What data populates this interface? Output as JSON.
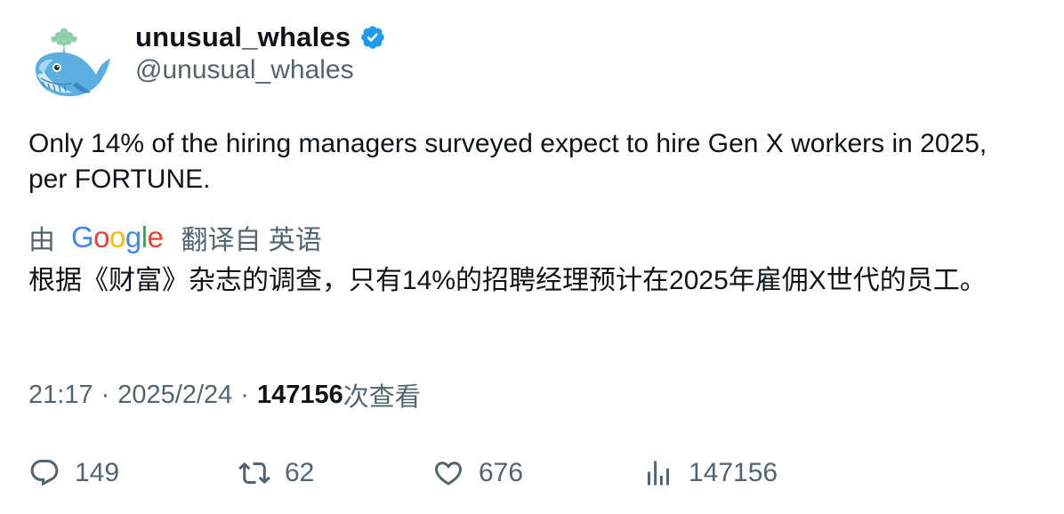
{
  "author": {
    "display_name": "unusual_whales",
    "handle": "@unusual_whales",
    "verified": true,
    "avatar_icon": "whale-icon",
    "verified_color": "#1d9bf0"
  },
  "tweet": {
    "text": "Only 14% of the hiring managers surveyed expect to hire Gen X workers in 2025, per FORTUNE.",
    "translated_by_prefix": "由",
    "translated_by_service": "Google",
    "translated_from": "翻译自 英语",
    "translation": "根据《财富》杂志的调查，只有14%的招聘经理预计在2025年雇佣X世代的员工。"
  },
  "meta": {
    "time": "21:17",
    "separator": "·",
    "date": "2025/2/24",
    "views_count": "147156",
    "views_label": "次查看"
  },
  "actions": {
    "replies": "149",
    "retweets": "62",
    "likes": "676",
    "views": "147156"
  },
  "colors": {
    "text_primary": "#0f1419",
    "text_secondary": "#536471",
    "google_blue": "#4285f4",
    "google_red": "#ea4335",
    "google_yellow": "#fbbc05",
    "google_green": "#34a853"
  }
}
